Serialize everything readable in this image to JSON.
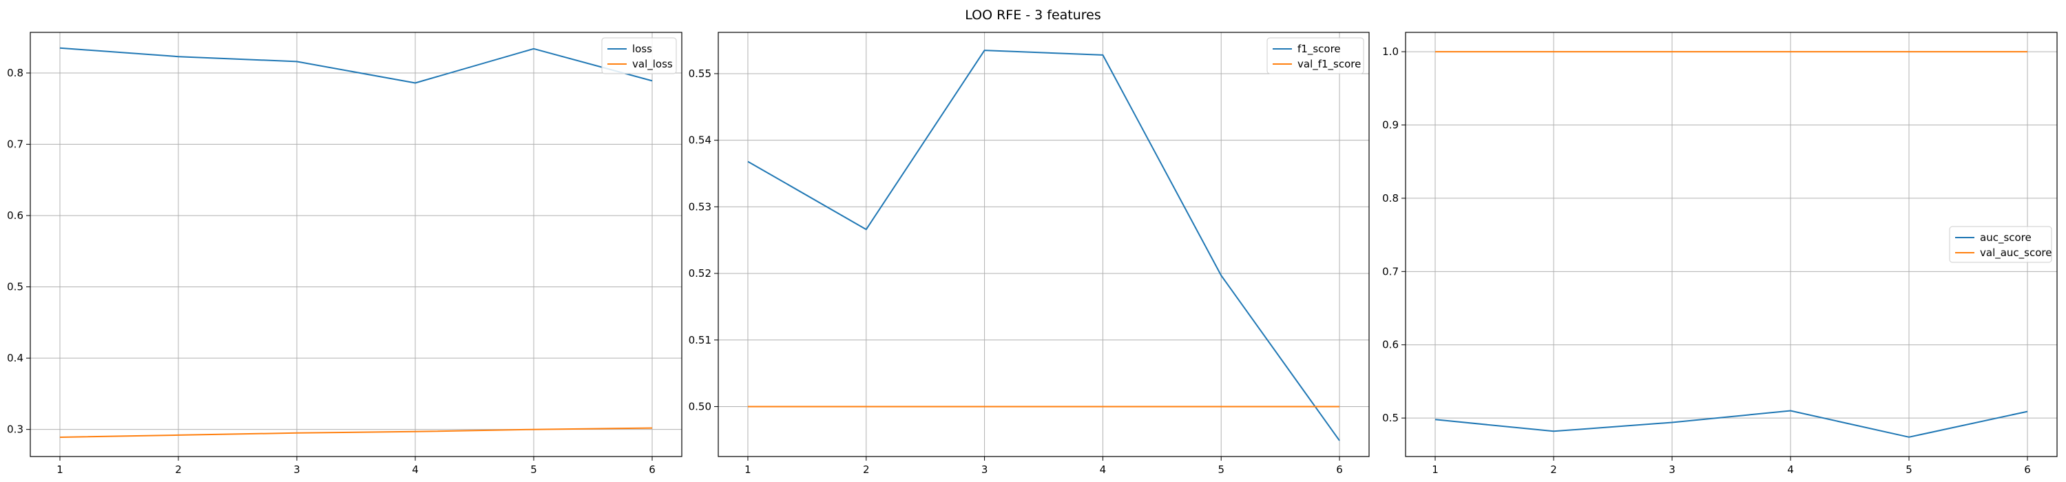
{
  "figure": {
    "title": "LOO RFE - 3 features"
  },
  "chart_data": [
    {
      "type": "line",
      "title": "",
      "xlabel": "",
      "ylabel": "",
      "x": [
        1,
        2,
        3,
        4,
        5,
        6
      ],
      "xlim": [
        0.75,
        6.25
      ],
      "ylim": [
        0.262,
        0.857
      ],
      "xticks": [
        1,
        2,
        3,
        4,
        5,
        6
      ],
      "yticks": [
        0.3,
        0.4,
        0.5,
        0.6,
        0.7,
        0.8
      ],
      "ytick_labels": [
        "0.3",
        "0.4",
        "0.5",
        "0.6",
        "0.7",
        "0.8"
      ],
      "grid": true,
      "legend_position": "top-right",
      "series": [
        {
          "name": "loss",
          "color": "#1f77b4",
          "values": [
            0.835,
            0.823,
            0.816,
            0.786,
            0.834,
            0.789
          ]
        },
        {
          "name": "val_loss",
          "color": "#ff7f0e",
          "values": [
            0.289,
            0.292,
            0.295,
            0.297,
            0.3,
            0.302
          ]
        }
      ]
    },
    {
      "type": "line",
      "title": "",
      "xlabel": "",
      "ylabel": "",
      "x": [
        1,
        2,
        3,
        4,
        5,
        6
      ],
      "xlim": [
        0.75,
        6.25
      ],
      "ylim": [
        0.4925,
        0.5562
      ],
      "xticks": [
        1,
        2,
        3,
        4,
        5,
        6
      ],
      "yticks": [
        0.5,
        0.51,
        0.52,
        0.53,
        0.54,
        0.55
      ],
      "ytick_labels": [
        "0.50",
        "0.51",
        "0.52",
        "0.53",
        "0.54",
        "0.55"
      ],
      "grid": true,
      "legend_position": "top-right",
      "series": [
        {
          "name": "f1_score",
          "color": "#1f77b4",
          "values": [
            0.5368,
            0.5266,
            0.5535,
            0.5528,
            0.5197,
            0.4949
          ]
        },
        {
          "name": "val_f1_score",
          "color": "#ff7f0e",
          "values": [
            0.5,
            0.5,
            0.5,
            0.5,
            0.5,
            0.5
          ]
        }
      ]
    },
    {
      "type": "line",
      "title": "",
      "xlabel": "",
      "ylabel": "",
      "x": [
        1,
        2,
        3,
        4,
        5,
        6
      ],
      "xlim": [
        0.75,
        6.25
      ],
      "ylim": [
        0.4475,
        1.0264
      ],
      "xticks": [
        1,
        2,
        3,
        4,
        5,
        6
      ],
      "yticks": [
        0.5,
        0.6,
        0.7,
        0.8,
        0.9,
        1.0
      ],
      "ytick_labels": [
        "0.5",
        "0.6",
        "0.7",
        "0.8",
        "0.9",
        "1.0"
      ],
      "grid": true,
      "legend_position": "center-right",
      "series": [
        {
          "name": "auc_score",
          "color": "#1f77b4",
          "values": [
            0.498,
            0.482,
            0.494,
            0.51,
            0.474,
            0.509
          ]
        },
        {
          "name": "val_auc_score",
          "color": "#ff7f0e",
          "values": [
            1.0,
            1.0,
            1.0,
            1.0,
            1.0,
            1.0
          ]
        }
      ]
    }
  ]
}
